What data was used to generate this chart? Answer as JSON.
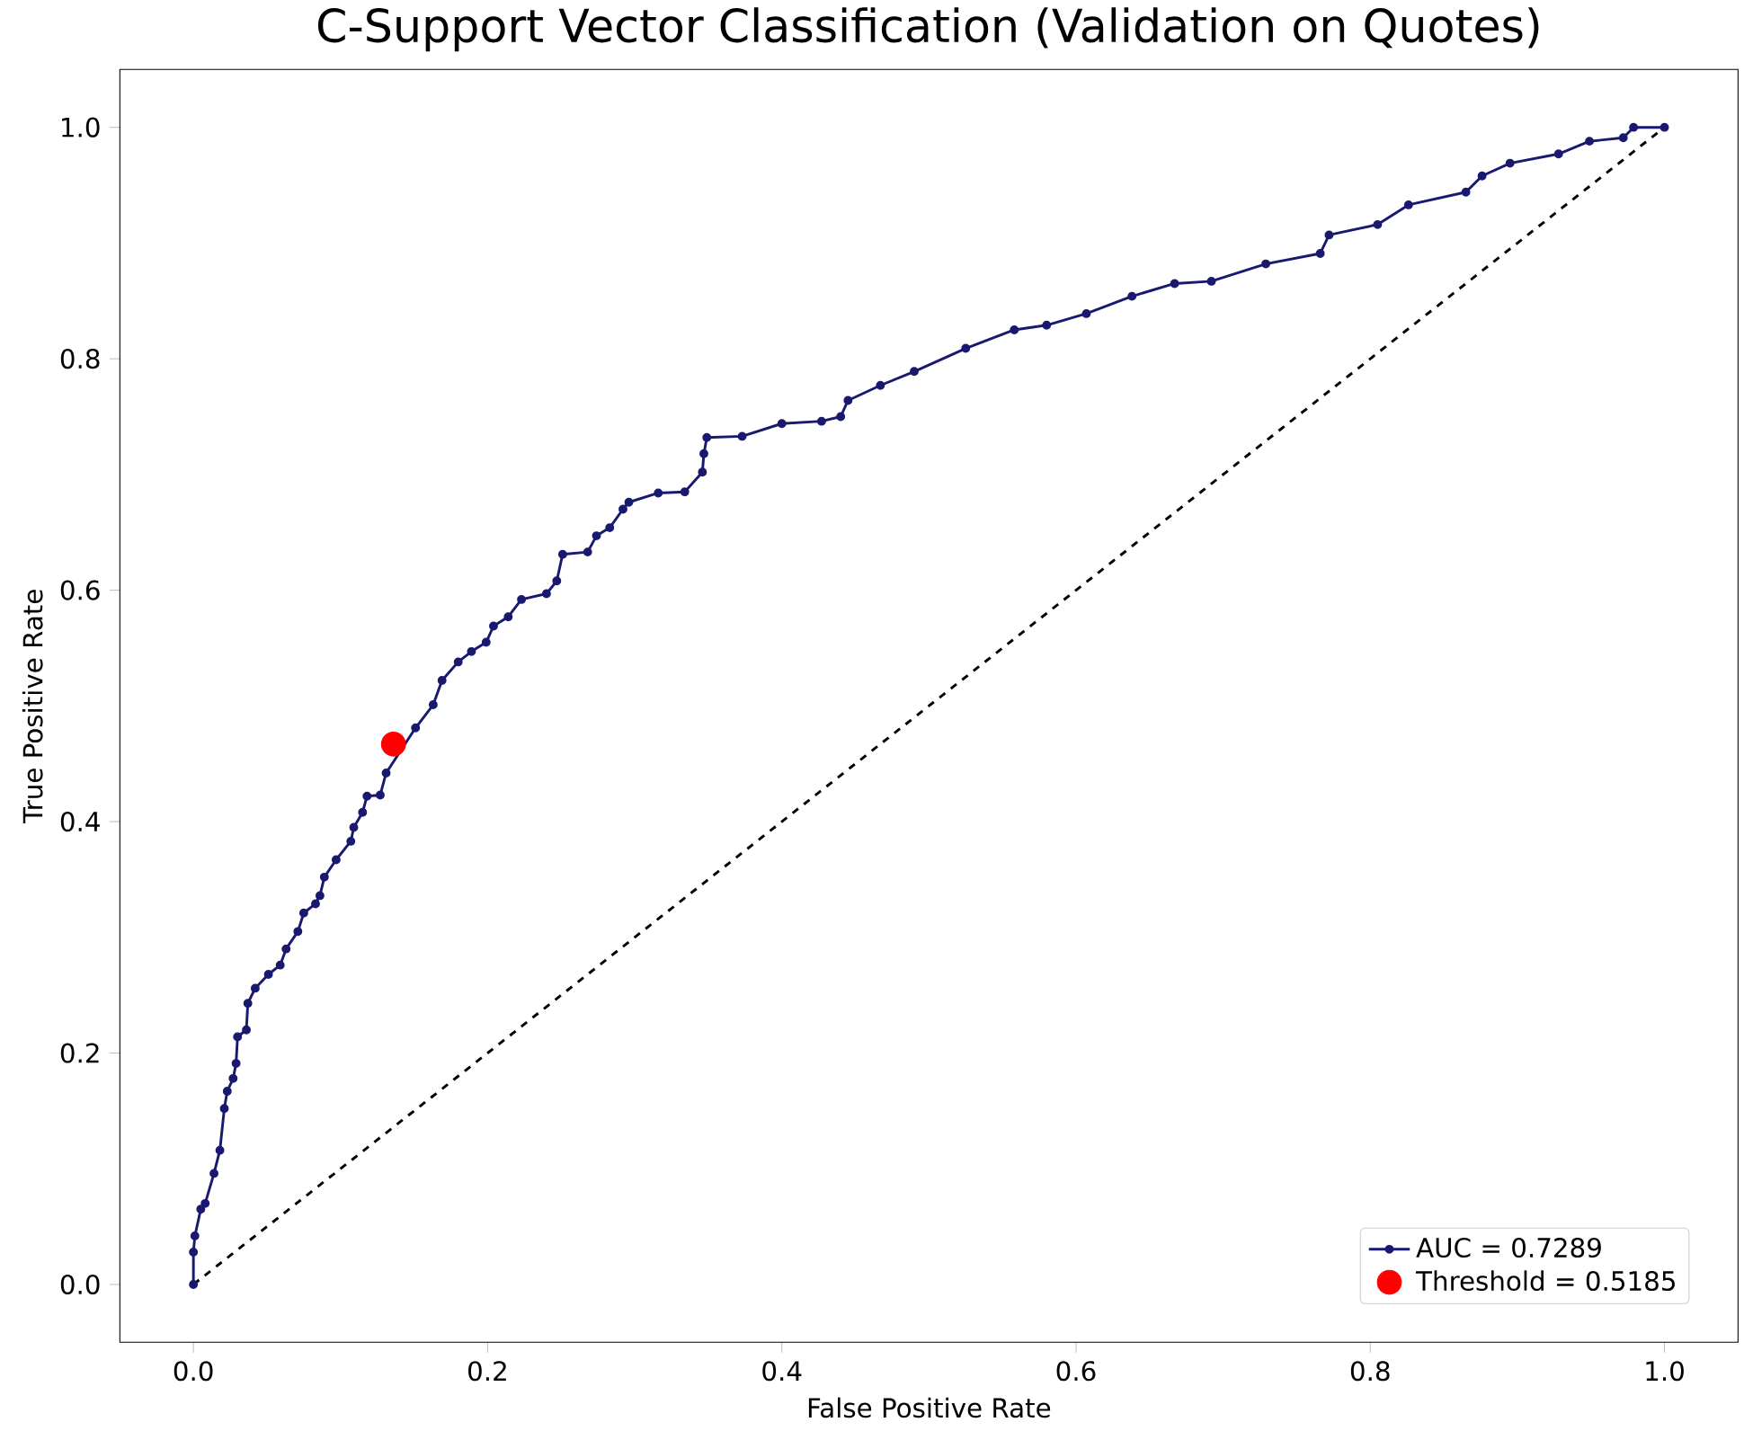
{
  "chart_data": {
    "type": "line",
    "title": "C-Support Vector Classification (Validation on Quotes)",
    "xlabel": "False Positive Rate",
    "ylabel": "True Positive Rate",
    "xlim": [
      -0.05,
      1.05
    ],
    "ylim": [
      -0.05,
      1.05
    ],
    "xticks": [
      {
        "value": 0,
        "label": "0.0"
      },
      0.2,
      0.4,
      0.6,
      0.8,
      {
        "value": 1,
        "label": "1.0"
      }
    ],
    "yticks": [
      {
        "value": 0,
        "label": "0.0"
      },
      0.2,
      0.4,
      0.6,
      0.8,
      {
        "value": 1,
        "label": "1.0"
      }
    ],
    "grid": false,
    "legend": "bottom right",
    "series": [
      {
        "name": "AUC = 0.7289",
        "color": "#191970",
        "marker": "circle",
        "line_style": "solid",
        "x": [
          0,
          0,
          0.001,
          0.005,
          0.008,
          0.014,
          0.018,
          0.021,
          0.023,
          0.027,
          0.029,
          0.03,
          0.036,
          0.037,
          0.042,
          0.051,
          0.059,
          0.063,
          0.071,
          0.075,
          0.083,
          0.086,
          0.089,
          0.097,
          0.107,
          0.109,
          0.115,
          0.118,
          0.127,
          0.131,
          0.138,
          0.151,
          0.163,
          0.169,
          0.18,
          0.189,
          0.199,
          0.204,
          0.214,
          0.223,
          0.24,
          0.247,
          0.251,
          0.268,
          0.274,
          0.283,
          0.292,
          0.296,
          0.316,
          0.334,
          0.346,
          0.347,
          0.349,
          0.373,
          0.4,
          0.427,
          0.44,
          0.445,
          0.467,
          0.49,
          0.525,
          0.558,
          0.58,
          0.607,
          0.638,
          0.667,
          0.692,
          0.729,
          0.766,
          0.772,
          0.805,
          0.826,
          0.865,
          0.876,
          0.895,
          0.928,
          0.949,
          0.972,
          0.979,
          1.0
        ],
        "values": [
          0,
          0.028,
          0.042,
          0.065,
          0.07,
          0.096,
          0.116,
          0.152,
          0.167,
          0.178,
          0.191,
          0.214,
          0.22,
          0.243,
          0.256,
          0.268,
          0.276,
          0.29,
          0.305,
          0.321,
          0.329,
          0.336,
          0.352,
          0.367,
          0.383,
          0.395,
          0.408,
          0.422,
          0.423,
          0.442,
          null,
          0.481,
          0.501,
          0.522,
          0.538,
          0.547,
          0.555,
          0.569,
          0.577,
          0.592,
          0.597,
          0.608,
          0.631,
          0.633,
          0.647,
          0.654,
          0.67,
          0.676,
          0.684,
          0.685,
          0.702,
          0.718,
          0.732,
          0.733,
          0.744,
          0.746,
          0.75,
          0.764,
          0.777,
          0.789,
          0.809,
          0.825,
          0.829,
          0.839,
          0.854,
          0.865,
          0.867,
          0.882,
          0.891,
          0.907,
          0.916,
          0.933,
          0.944,
          0.958,
          0.969,
          0.977,
          0.988,
          0.991,
          1.0,
          1.0
        ]
      },
      {
        "color": "#000000",
        "marker": "none",
        "line_style": "dashed",
        "x": [
          0,
          1
        ],
        "values": [
          0,
          1
        ]
      },
      {
        "name": "Threshold = 0.5185",
        "type": "scatter",
        "color": "#ff0000",
        "marker": "circle",
        "x": [
          0.136
        ],
        "values": [
          0.467
        ]
      }
    ]
  }
}
